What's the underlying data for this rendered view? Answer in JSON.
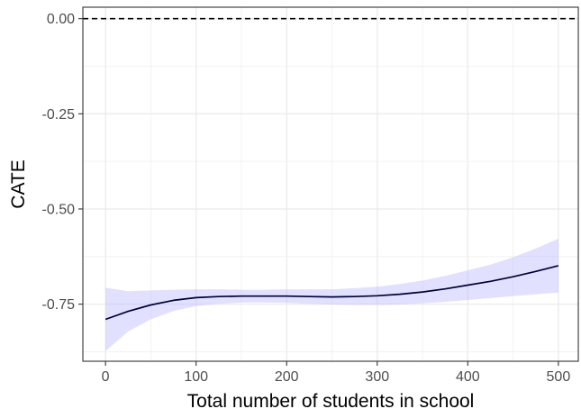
{
  "chart_data": {
    "type": "line",
    "title": "",
    "xlabel": "Total number of students in school",
    "ylabel": "CATE",
    "xlim": [
      -25,
      522
    ],
    "ylim": [
      -0.9,
      0.03
    ],
    "x_ticks": [
      0,
      100,
      200,
      300,
      400,
      500
    ],
    "y_ticks": [
      0.0,
      -0.25,
      -0.5,
      -0.75
    ],
    "x_tick_labels": [
      "0",
      "100",
      "200",
      "300",
      "400",
      "500"
    ],
    "y_tick_labels": [
      "0.00",
      "-0.25",
      "-0.50",
      "-0.75"
    ],
    "grid": true,
    "reference_line": {
      "y": 0.0,
      "style": "dashed",
      "color": "#000000"
    },
    "series": [
      {
        "x": [
          0,
          25,
          50,
          75,
          100,
          125,
          150,
          175,
          200,
          225,
          250,
          275,
          300,
          325,
          350,
          375,
          400,
          425,
          450,
          475,
          500
        ],
        "y": [
          -0.79,
          -0.769,
          -0.752,
          -0.74,
          -0.733,
          -0.73,
          -0.729,
          -0.729,
          -0.729,
          -0.73,
          -0.731,
          -0.73,
          -0.728,
          -0.724,
          -0.718,
          -0.71,
          -0.7,
          -0.69,
          -0.678,
          -0.664,
          -0.649
        ],
        "lower": [
          -0.873,
          -0.822,
          -0.79,
          -0.768,
          -0.755,
          -0.749,
          -0.746,
          -0.746,
          -0.747,
          -0.749,
          -0.751,
          -0.752,
          -0.752,
          -0.751,
          -0.748,
          -0.744,
          -0.739,
          -0.734,
          -0.729,
          -0.724,
          -0.72
        ],
        "upper": [
          -0.707,
          -0.716,
          -0.714,
          -0.712,
          -0.711,
          -0.711,
          -0.712,
          -0.712,
          -0.711,
          -0.711,
          -0.711,
          -0.708,
          -0.704,
          -0.697,
          -0.688,
          -0.676,
          -0.661,
          -0.646,
          -0.627,
          -0.604,
          -0.578
        ],
        "line_color": "#000033",
        "band_color": "#b3b3ff"
      }
    ]
  }
}
